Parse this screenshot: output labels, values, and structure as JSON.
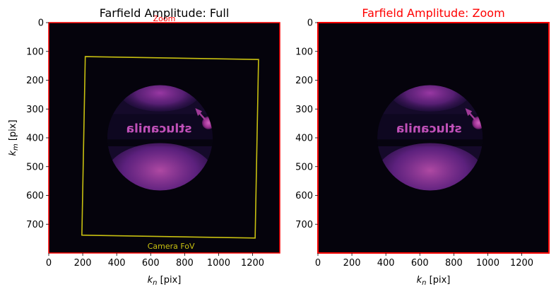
{
  "chart_data": [
    {
      "type": "heatmap",
      "title": "Farfield Amplitude: Full",
      "title_color": "#000000",
      "xlabel": "k_n [pix]",
      "ylabel": "k_m [pix]",
      "xlim": [
        0,
        1360
      ],
      "ylim": [
        800,
        0
      ],
      "x_ticks": [
        0,
        200,
        400,
        600,
        800,
        1000,
        1200
      ],
      "y_ticks": [
        0,
        100,
        200,
        300,
        400,
        500,
        600,
        700
      ],
      "annotations": {
        "zoom_label": "Zoom",
        "zoom_color": "#ff0000",
        "camera_label": "Camera FoV",
        "camera_color": "#c8c010",
        "camera_fov_polygon": [
          [
            215,
            118
          ],
          [
            1235,
            128
          ],
          [
            1215,
            748
          ],
          [
            195,
            738
          ]
        ],
        "zoom_rect": [
          [
            0,
            0
          ],
          [
            1360,
            0
          ],
          [
            1360,
            800
          ],
          [
            0,
            800
          ]
        ]
      },
      "spot_label": "stlucanila",
      "spot_center": [
        655,
        400
      ]
    },
    {
      "type": "heatmap",
      "title": "Farfield Amplitude: Zoom",
      "title_color": "#ff0000",
      "xlabel": "k_n [pix]",
      "ylabel": "",
      "xlim": [
        0,
        1360
      ],
      "ylim": [
        800,
        0
      ],
      "x_ticks": [
        0,
        200,
        400,
        600,
        800,
        1000,
        1200
      ],
      "y_ticks": [
        0,
        100,
        200,
        300,
        400,
        500,
        600,
        700
      ],
      "frame_color": "#ff0000",
      "spot_label": "stlucanila",
      "spot_center": [
        660,
        400
      ]
    }
  ]
}
